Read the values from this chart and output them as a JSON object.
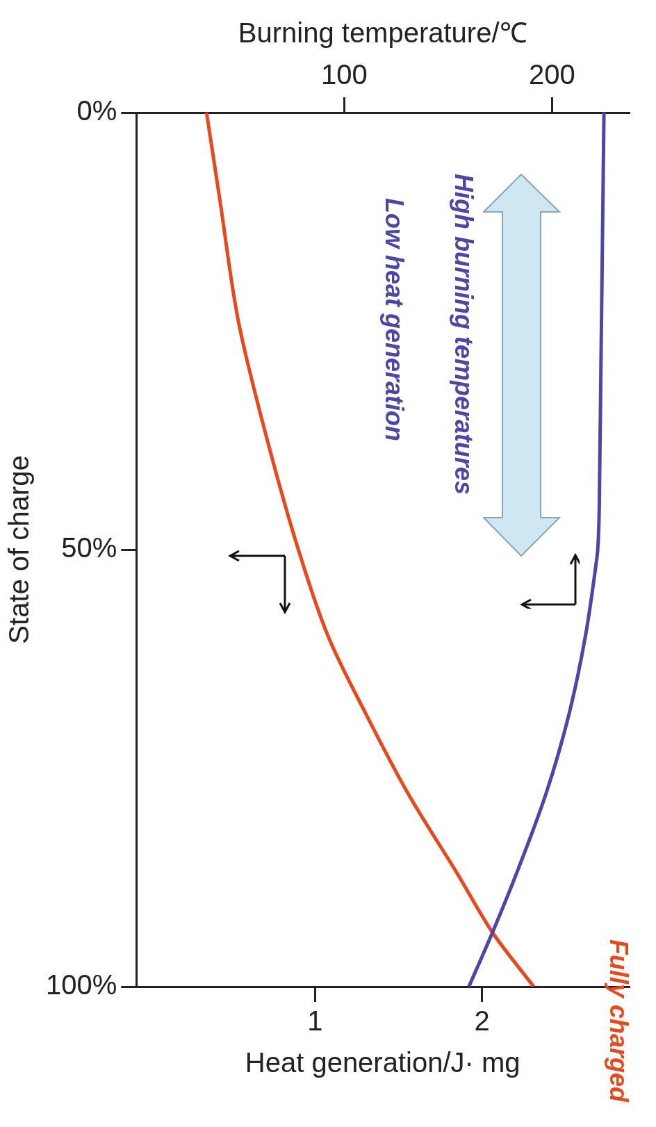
{
  "chart_data": {
    "type": "line",
    "ylabel": "State of charge",
    "x2label": "Burning temperature/℃",
    "xlabel": "Heat generation/J· mg",
    "ylim": [
      100,
      0
    ],
    "yticks": [
      {
        "value": 0,
        "label": "0%"
      },
      {
        "value": 50,
        "label": "50%"
      },
      {
        "value": 100,
        "label": "100%"
      }
    ],
    "x2lim": [
      0,
      237
    ],
    "x2ticks": [
      100,
      200
    ],
    "xlim": [
      -0.07,
      2.88
    ],
    "xticks": [
      1,
      2
    ],
    "series": [
      {
        "color": "#4b46a8",
        "axis": "x2",
        "x": [
          225,
          224.5,
          224,
          223.5,
          223,
          222,
          221,
          216,
          208,
          197,
          183,
          171,
          160
        ],
        "values": [
          0,
          10,
          20,
          30,
          40,
          50,
          52,
          60,
          69,
          78,
          87,
          94,
          100
        ]
      },
      {
        "color": "#e8481c",
        "x": [
          0.35,
          0.43,
          0.54,
          0.68,
          0.9,
          1.08,
          1.31,
          1.56,
          1.85,
          2.07,
          2.31
        ],
        "values": [
          0,
          10,
          23.8,
          35,
          50,
          60,
          69,
          78,
          87,
          94,
          100
        ]
      }
    ],
    "annotations": [
      "High burning temperatures",
      "Low heat generation",
      "Fully charged"
    ],
    "grid": false,
    "legend": false,
    "marker": "none",
    "line_style": "solid"
  }
}
